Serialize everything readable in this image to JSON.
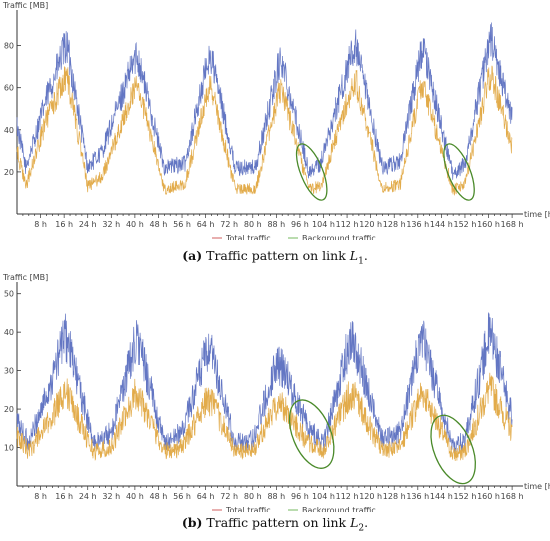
{
  "chart_data": [
    {
      "type": "line",
      "ylabel": "Traffic [MB]",
      "xlabel": "time [h]",
      "xlim": [
        0,
        170
      ],
      "ylim": [
        0,
        95
      ],
      "x_ticks": [
        "8 h",
        "16 h",
        "24 h",
        "32 h",
        "40 h",
        "48 h",
        "56 h",
        "64 h",
        "72 h",
        "80 h",
        "88 h",
        "96 h",
        "104 h",
        "112 h",
        "120 h",
        "128 h",
        "136 h",
        "144 h",
        "152 h",
        "160 h",
        "168 h"
      ],
      "y_ticks": [
        20,
        40,
        60,
        80
      ],
      "legend": [
        "Total traffic",
        "Background traffic"
      ],
      "legend_position": "bottom-center",
      "caption_label": "(a)",
      "caption_text": "Traffic pattern on link ",
      "caption_link": "L",
      "caption_link_sub": "1",
      "caption_end": ".",
      "series": [
        {
          "name": "Total traffic",
          "color": "#5b6fc0",
          "x": [
            0,
            3,
            10,
            16,
            17,
            24,
            29,
            40,
            41,
            50,
            57,
            65,
            66,
            74,
            81,
            89,
            90,
            99,
            103,
            114,
            115,
            124,
            130,
            137,
            138,
            148,
            152,
            160,
            161,
            168
          ],
          "y": [
            42,
            22,
            55,
            78,
            80,
            22,
            30,
            74,
            75,
            22,
            24,
            74,
            74,
            22,
            22,
            72,
            72,
            20,
            24,
            78,
            79,
            22,
            25,
            76,
            77,
            18,
            24,
            80,
            82,
            45
          ]
        },
        {
          "name": "Background traffic",
          "color": "#e0a640",
          "x": [
            0,
            3,
            10,
            16,
            17,
            24,
            29,
            40,
            41,
            50,
            57,
            65,
            66,
            74,
            81,
            89,
            90,
            99,
            103,
            114,
            115,
            124,
            130,
            137,
            138,
            148,
            152,
            160,
            161,
            168
          ],
          "y": [
            30,
            13,
            45,
            64,
            66,
            13,
            18,
            60,
            61,
            12,
            14,
            60,
            60,
            12,
            12,
            58,
            58,
            12,
            13,
            62,
            63,
            12,
            14,
            60,
            60,
            11,
            14,
            64,
            66,
            32
          ]
        }
      ],
      "highlighted_region_centers_h": [
        100,
        150
      ],
      "highlight_color": "#4a8a2a"
    },
    {
      "type": "line",
      "ylabel": "Traffic [MB]",
      "xlabel": "time [h]",
      "xlim": [
        0,
        170
      ],
      "ylim": [
        0,
        52
      ],
      "x_ticks": [
        "8 h",
        "16 h",
        "24 h",
        "32 h",
        "40 h",
        "48 h",
        "56 h",
        "64 h",
        "72 h",
        "80 h",
        "88 h",
        "96 h",
        "104 h",
        "112 h",
        "120 h",
        "128 h",
        "136 h",
        "144 h",
        "152 h",
        "160 h",
        "168 h"
      ],
      "y_ticks": [
        10,
        20,
        30,
        40,
        50
      ],
      "legend": [
        "Total traffic",
        "Background traffic"
      ],
      "legend_position": "bottom-center",
      "caption_label": "(b)",
      "caption_text": "Traffic pattern on link ",
      "caption_link": "L",
      "caption_link_sub": "2",
      "caption_end": ".",
      "series": [
        {
          "name": "Total traffic",
          "color": "#5b6fc0",
          "x": [
            0,
            4,
            12,
            16,
            17,
            26,
            32,
            40,
            41,
            50,
            56,
            64,
            66,
            74,
            80,
            88,
            90,
            99,
            104,
            113,
            114,
            124,
            130,
            137,
            138,
            148,
            152,
            160,
            161,
            168
          ],
          "y": [
            17,
            11,
            28,
            39,
            38,
            11,
            14,
            37,
            38,
            11,
            14,
            34,
            34,
            11,
            12,
            32,
            31,
            15,
            11,
            38,
            38,
            12,
            14,
            38,
            37,
            10,
            12,
            39,
            39,
            18
          ]
        },
        {
          "name": "Background traffic",
          "color": "#e0a640",
          "x": [
            0,
            4,
            12,
            16,
            17,
            26,
            32,
            40,
            41,
            50,
            56,
            64,
            66,
            74,
            80,
            88,
            90,
            99,
            104,
            113,
            114,
            124,
            130,
            137,
            138,
            148,
            152,
            160,
            161,
            168
          ],
          "y": [
            13,
            9,
            18,
            25,
            24,
            9,
            10,
            24,
            24,
            9,
            10,
            22,
            22,
            9,
            9,
            21,
            21,
            11,
            9,
            24,
            24,
            9,
            10,
            24,
            24,
            8,
            9,
            25,
            25,
            14
          ]
        }
      ],
      "highlighted_region_centers_h": [
        100,
        148
      ],
      "highlight_color": "#4a8a2a"
    }
  ]
}
